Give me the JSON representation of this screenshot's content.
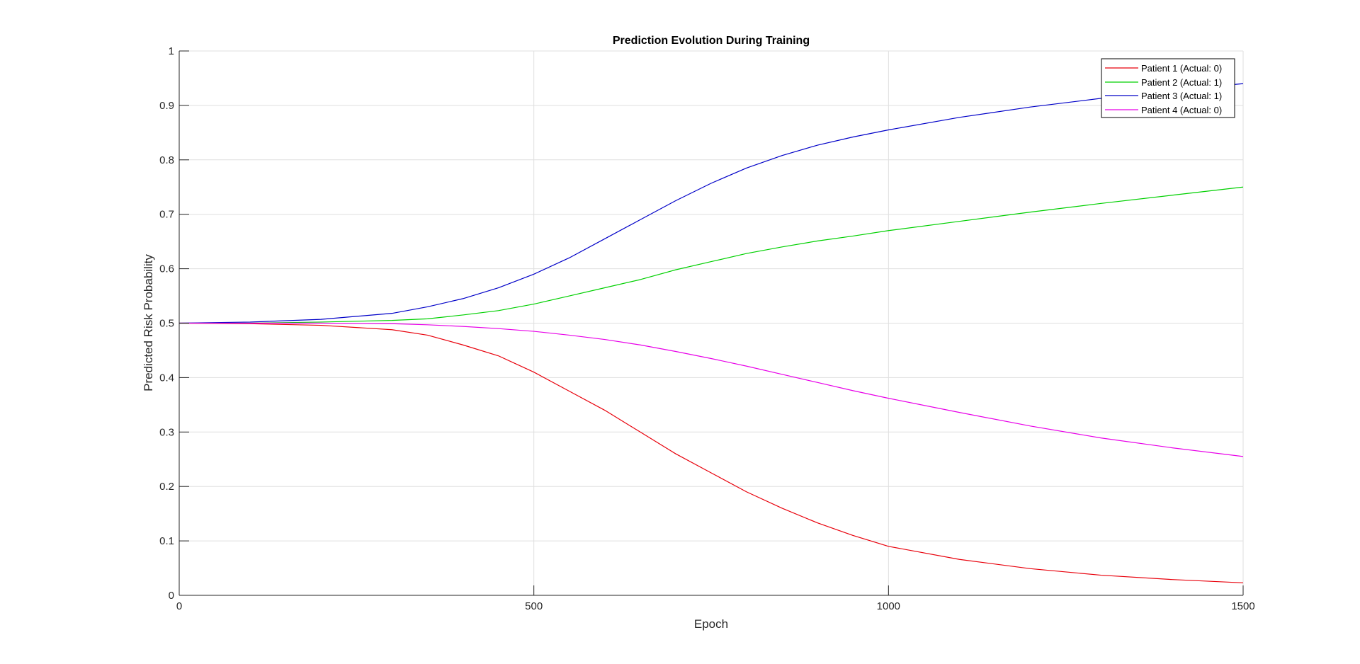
{
  "chart_data": {
    "type": "line",
    "title": "Prediction Evolution During Training",
    "xlabel": "Epoch",
    "ylabel": "Predicted Risk Probability",
    "xlim": [
      0,
      1500
    ],
    "ylim": [
      0,
      1
    ],
    "xticks": [
      0,
      500,
      1000,
      1500
    ],
    "yticks": [
      0,
      0.1,
      0.2,
      0.3,
      0.4,
      0.5,
      0.6,
      0.7,
      0.8,
      0.9,
      1
    ],
    "grid": true,
    "legend_location": "top-right",
    "series": [
      {
        "name": "Patient 1 (Actual: 0)",
        "color": "#e8000b",
        "x": [
          0,
          100,
          200,
          300,
          350,
          400,
          450,
          500,
          550,
          600,
          650,
          700,
          750,
          800,
          850,
          900,
          950,
          1000,
          1100,
          1200,
          1300,
          1400,
          1500
        ],
        "values": [
          0.5,
          0.499,
          0.496,
          0.488,
          0.478,
          0.46,
          0.44,
          0.41,
          0.375,
          0.34,
          0.3,
          0.26,
          0.225,
          0.19,
          0.16,
          0.133,
          0.11,
          0.09,
          0.066,
          0.049,
          0.037,
          0.029,
          0.023
        ]
      },
      {
        "name": "Patient 2 (Actual: 1)",
        "color": "#00d000",
        "x": [
          0,
          100,
          200,
          300,
          350,
          400,
          450,
          500,
          550,
          600,
          650,
          700,
          750,
          800,
          850,
          900,
          950,
          1000,
          1100,
          1200,
          1300,
          1400,
          1500
        ],
        "values": [
          0.5,
          0.5,
          0.502,
          0.505,
          0.508,
          0.515,
          0.523,
          0.535,
          0.55,
          0.565,
          0.58,
          0.598,
          0.613,
          0.628,
          0.64,
          0.651,
          0.66,
          0.67,
          0.687,
          0.704,
          0.72,
          0.735,
          0.75
        ]
      },
      {
        "name": "Patient 3 (Actual: 1)",
        "color": "#0000c8",
        "x": [
          0,
          100,
          200,
          300,
          350,
          400,
          450,
          500,
          550,
          600,
          650,
          700,
          750,
          800,
          850,
          900,
          950,
          1000,
          1100,
          1200,
          1300,
          1400,
          1500
        ],
        "values": [
          0.5,
          0.502,
          0.507,
          0.518,
          0.53,
          0.545,
          0.565,
          0.59,
          0.62,
          0.655,
          0.69,
          0.725,
          0.757,
          0.785,
          0.808,
          0.827,
          0.842,
          0.855,
          0.878,
          0.897,
          0.913,
          0.927,
          0.94
        ]
      },
      {
        "name": "Patient 4 (Actual: 0)",
        "color": "#e800e8",
        "x": [
          0,
          100,
          200,
          300,
          350,
          400,
          450,
          500,
          550,
          600,
          650,
          700,
          750,
          800,
          850,
          900,
          950,
          1000,
          1100,
          1200,
          1300,
          1400,
          1500
        ],
        "values": [
          0.5,
          0.5,
          0.5,
          0.499,
          0.497,
          0.494,
          0.49,
          0.485,
          0.478,
          0.47,
          0.46,
          0.448,
          0.435,
          0.421,
          0.406,
          0.391,
          0.376,
          0.362,
          0.336,
          0.311,
          0.289,
          0.271,
          0.255
        ]
      }
    ]
  }
}
